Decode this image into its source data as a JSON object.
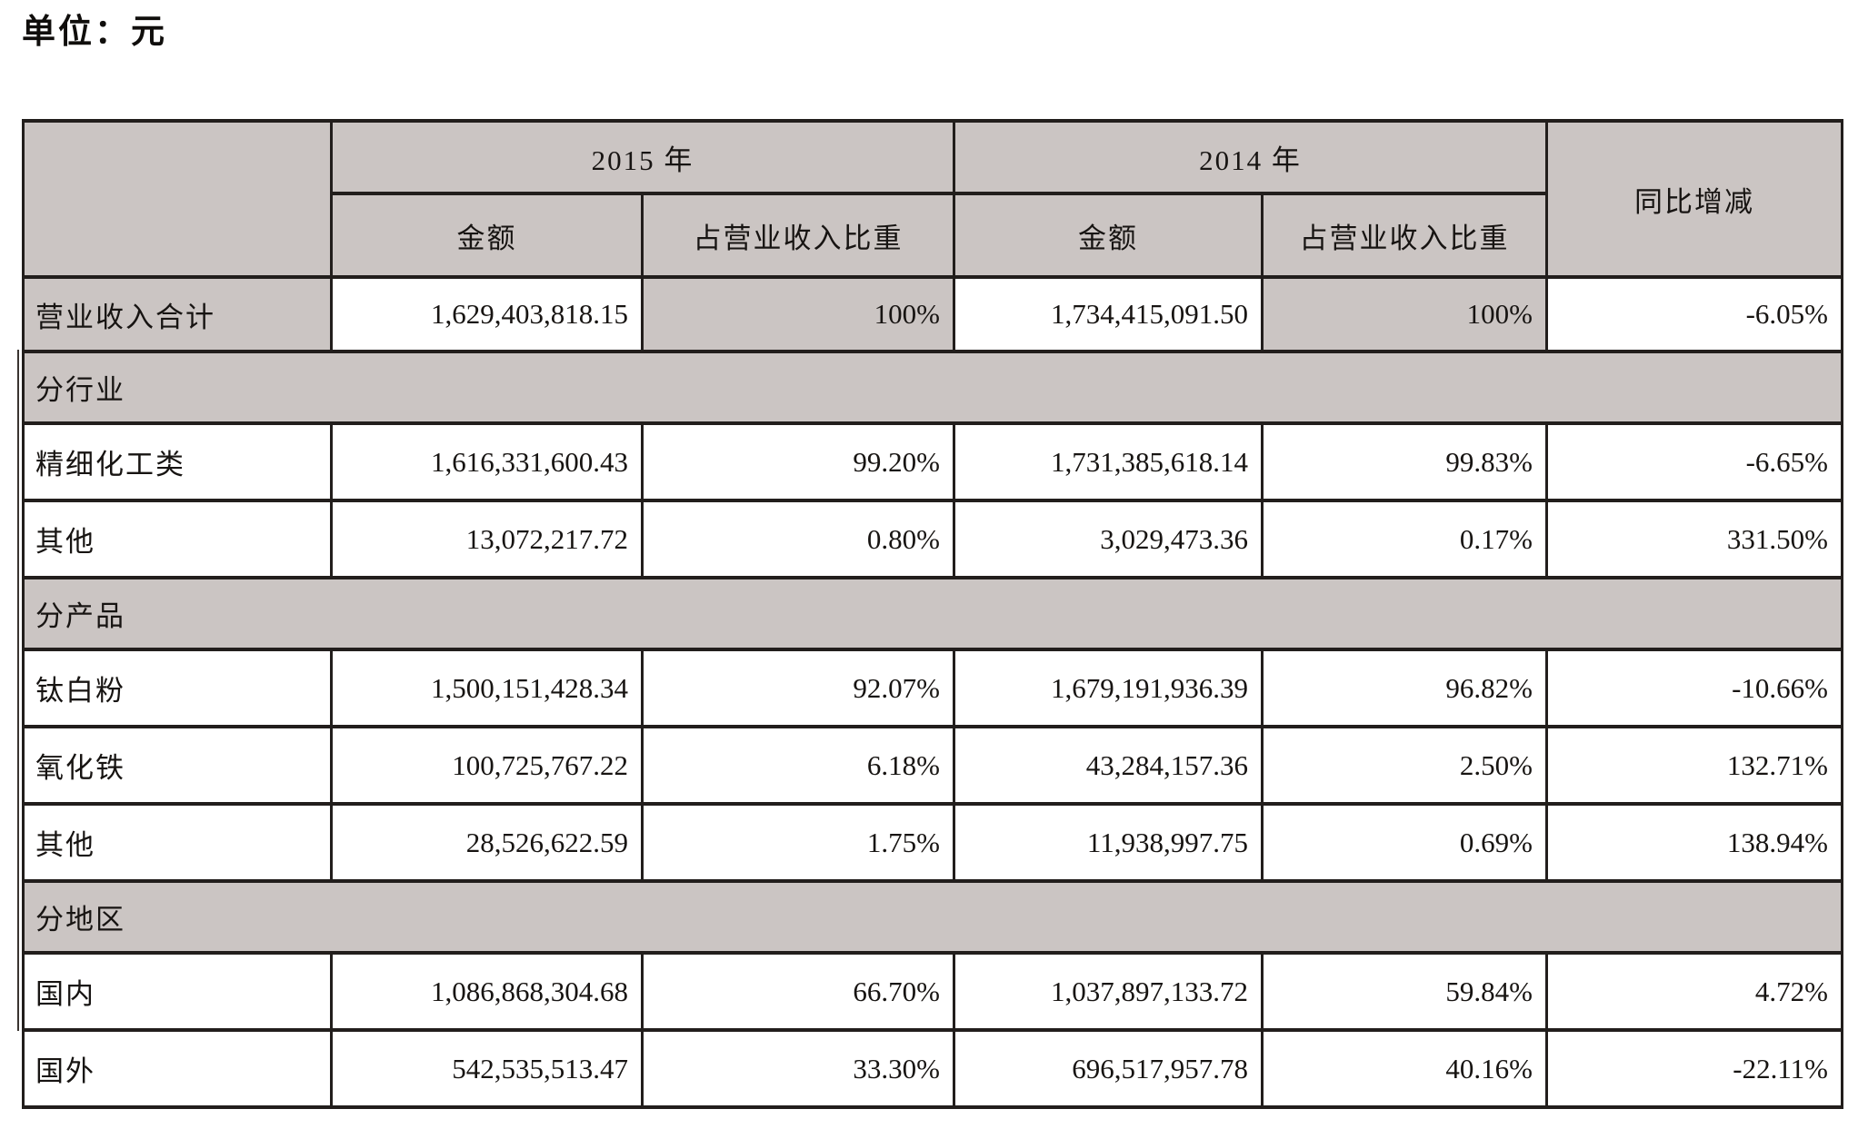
{
  "unit_label": "单位：元",
  "colors": {
    "shaded_bg": "#cbc5c3",
    "border": "#221e1c",
    "text": "#171412"
  },
  "table": {
    "headers": {
      "year_2015": "2015 年",
      "year_2014": "2014 年",
      "amount": "金额",
      "share_of_revenue": "占营业收入比重",
      "yoy_change": "同比增减"
    },
    "rows": [
      {
        "type": "data",
        "variant": "total",
        "label": "营业收入合计",
        "amount_2015": "1,629,403,818.15",
        "share_2015": "100%",
        "amount_2014": "1,734,415,091.50",
        "share_2014": "100%",
        "yoy": "-6.05%"
      },
      {
        "type": "section",
        "label": "分行业"
      },
      {
        "type": "data",
        "label": "精细化工类",
        "amount_2015": "1,616,331,600.43",
        "share_2015": "99.20%",
        "amount_2014": "1,731,385,618.14",
        "share_2014": "99.83%",
        "yoy": "-6.65%"
      },
      {
        "type": "data",
        "label": "其他",
        "amount_2015": "13,072,217.72",
        "share_2015": "0.80%",
        "amount_2014": "3,029,473.36",
        "share_2014": "0.17%",
        "yoy": "331.50%"
      },
      {
        "type": "section",
        "label": "分产品"
      },
      {
        "type": "data",
        "label": "钛白粉",
        "amount_2015": "1,500,151,428.34",
        "share_2015": "92.07%",
        "amount_2014": "1,679,191,936.39",
        "share_2014": "96.82%",
        "yoy": "-10.66%"
      },
      {
        "type": "data",
        "label": "氧化铁",
        "amount_2015": "100,725,767.22",
        "share_2015": "6.18%",
        "amount_2014": "43,284,157.36",
        "share_2014": "2.50%",
        "yoy": "132.71%"
      },
      {
        "type": "data",
        "label": "其他",
        "amount_2015": "28,526,622.59",
        "share_2015": "1.75%",
        "amount_2014": "11,938,997.75",
        "share_2014": "0.69%",
        "yoy": "138.94%"
      },
      {
        "type": "section",
        "label": "分地区"
      },
      {
        "type": "data",
        "label": "国内",
        "amount_2015": "1,086,868,304.68",
        "share_2015": "66.70%",
        "amount_2014": "1,037,897,133.72",
        "share_2014": "59.84%",
        "yoy": "4.72%"
      },
      {
        "type": "data",
        "label": "国外",
        "amount_2015": "542,535,513.47",
        "share_2015": "33.30%",
        "amount_2014": "696,517,957.78",
        "share_2014": "40.16%",
        "yoy": "-22.11%"
      }
    ]
  }
}
